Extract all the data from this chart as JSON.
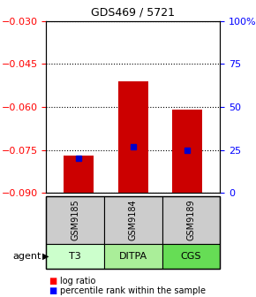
{
  "title": "GDS469 / 5721",
  "samples": [
    "GSM9185",
    "GSM9184",
    "GSM9189"
  ],
  "agents": [
    "T3",
    "DITPA",
    "CGS"
  ],
  "log_ratios": [
    -0.077,
    -0.051,
    -0.061
  ],
  "percentile_ranks": [
    20.0,
    27.0,
    25.0
  ],
  "ylim_left": [
    -0.09,
    -0.03
  ],
  "yticks_left": [
    -0.09,
    -0.075,
    -0.06,
    -0.045,
    -0.03
  ],
  "yticks_right": [
    0,
    25,
    50,
    75,
    100
  ],
  "bar_color": "#cc0000",
  "percentile_color": "#0000cc",
  "agent_colors": [
    "#ccffcc",
    "#aaee99",
    "#66dd55"
  ],
  "sample_bg": "#cccccc",
  "bar_width": 0.55,
  "title_fontsize": 9
}
